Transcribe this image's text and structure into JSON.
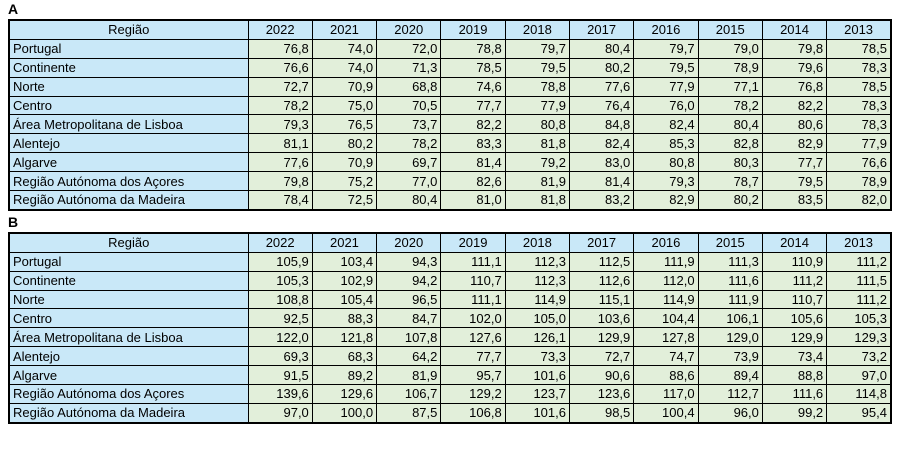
{
  "styles": {
    "header_fill": "#c9e8f8",
    "region_fill": "#c9e8f8",
    "value_fill": "#e2efda",
    "border_color": "#000000",
    "text_color": "#000000"
  },
  "chart_data": [
    {
      "type": "table",
      "label": "A",
      "columns": [
        "Região",
        "2022",
        "2021",
        "2020",
        "2019",
        "2018",
        "2017",
        "2016",
        "2015",
        "2014",
        "2013"
      ],
      "rows": [
        [
          "Portugal",
          "76,8",
          "74,0",
          "72,0",
          "78,8",
          "79,7",
          "80,4",
          "79,7",
          "79,0",
          "79,8",
          "78,5"
        ],
        [
          "Continente",
          "76,6",
          "74,0",
          "71,3",
          "78,5",
          "79,5",
          "80,2",
          "79,5",
          "78,9",
          "79,6",
          "78,3"
        ],
        [
          "Norte",
          "72,7",
          "70,9",
          "68,8",
          "74,6",
          "78,8",
          "77,6",
          "77,9",
          "77,1",
          "76,8",
          "78,5"
        ],
        [
          "Centro",
          "78,2",
          "75,0",
          "70,5",
          "77,7",
          "77,9",
          "76,4",
          "76,0",
          "78,2",
          "82,2",
          "78,3"
        ],
        [
          "Área Metropolitana de Lisboa",
          "79,3",
          "76,5",
          "73,7",
          "82,2",
          "80,8",
          "84,8",
          "82,4",
          "80,4",
          "80,6",
          "78,3"
        ],
        [
          "Alentejo",
          "81,1",
          "80,2",
          "78,2",
          "83,3",
          "81,8",
          "82,4",
          "85,3",
          "82,8",
          "82,9",
          "77,9"
        ],
        [
          "Algarve",
          "77,6",
          "70,9",
          "69,7",
          "81,4",
          "79,2",
          "83,0",
          "80,8",
          "80,3",
          "77,7",
          "76,6"
        ],
        [
          "Região Autónoma dos Açores",
          "79,8",
          "75,2",
          "77,0",
          "82,6",
          "81,9",
          "81,4",
          "79,3",
          "78,7",
          "79,5",
          "78,9"
        ],
        [
          "Região Autónoma da Madeira",
          "78,4",
          "72,5",
          "80,4",
          "81,0",
          "81,8",
          "83,2",
          "82,9",
          "80,2",
          "83,5",
          "82,0"
        ]
      ]
    },
    {
      "type": "table",
      "label": "B",
      "columns": [
        "Região",
        "2022",
        "2021",
        "2020",
        "2019",
        "2018",
        "2017",
        "2016",
        "2015",
        "2014",
        "2013"
      ],
      "rows": [
        [
          "Portugal",
          "105,9",
          "103,4",
          "94,3",
          "111,1",
          "112,3",
          "112,5",
          "111,9",
          "111,3",
          "110,9",
          "111,2"
        ],
        [
          "Continente",
          "105,3",
          "102,9",
          "94,2",
          "110,7",
          "112,3",
          "112,6",
          "112,0",
          "111,6",
          "111,2",
          "111,5"
        ],
        [
          "Norte",
          "108,8",
          "105,4",
          "96,5",
          "111,1",
          "114,9",
          "115,1",
          "114,9",
          "111,9",
          "110,7",
          "111,2"
        ],
        [
          "Centro",
          "92,5",
          "88,3",
          "84,7",
          "102,0",
          "105,0",
          "103,6",
          "104,4",
          "106,1",
          "105,6",
          "105,3"
        ],
        [
          "Área Metropolitana de Lisboa",
          "122,0",
          "121,8",
          "107,8",
          "127,6",
          "126,1",
          "129,9",
          "127,8",
          "129,0",
          "129,9",
          "129,3"
        ],
        [
          "Alentejo",
          "69,3",
          "68,3",
          "64,2",
          "77,7",
          "73,3",
          "72,7",
          "74,7",
          "73,9",
          "73,4",
          "73,2"
        ],
        [
          "Algarve",
          "91,5",
          "89,2",
          "81,9",
          "95,7",
          "101,6",
          "90,6",
          "88,6",
          "89,4",
          "88,8",
          "97,0"
        ],
        [
          "Região Autónoma dos Açores",
          "139,6",
          "129,6",
          "106,7",
          "129,2",
          "123,7",
          "123,6",
          "117,0",
          "112,7",
          "111,6",
          "114,8"
        ],
        [
          "Região Autónoma da Madeira",
          "97,0",
          "100,0",
          "87,5",
          "106,8",
          "101,6",
          "98,5",
          "100,4",
          "96,0",
          "99,2",
          "95,4"
        ]
      ]
    }
  ]
}
